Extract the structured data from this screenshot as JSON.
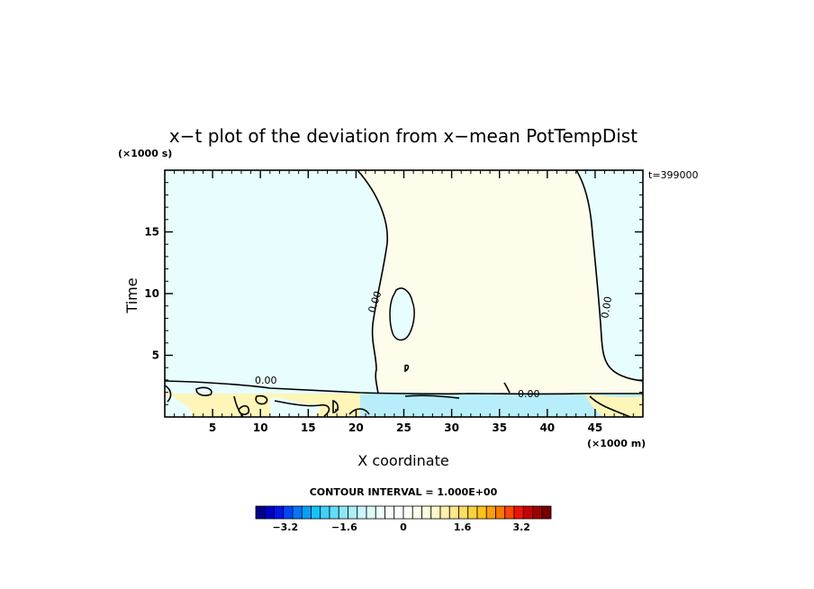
{
  "chart_data": {
    "type": "heatmap",
    "title": "x−t plot of the deviation from x−mean PotTempDist",
    "xlabel": "X coordinate",
    "ylabel": "Time",
    "x_units": "(×1000 m)",
    "y_units": "(×1000 s)",
    "timestamp": "t=399000",
    "xlim": [
      0,
      50
    ],
    "ylim": [
      0,
      20
    ],
    "x_ticks": [
      5,
      10,
      15,
      20,
      25,
      30,
      35,
      40,
      45
    ],
    "y_ticks": [
      5,
      10,
      15
    ],
    "contour_interval_text": "CONTOUR INTERVAL = 1.000E+00",
    "contour_labels": [
      "0.00",
      "0.00",
      "0.00",
      "0.00",
      "0.00"
    ],
    "regions": [
      {
        "name": "slightly negative (left)",
        "value": -0.3,
        "color": "#e8fefe"
      },
      {
        "name": "slightly positive (middle)",
        "value": 0.2,
        "color": "#fefcea"
      },
      {
        "name": "slightly negative (right)",
        "value": -0.3,
        "color": "#e8fefe"
      },
      {
        "name": "positive band near t=1 (left)",
        "value": 0.8,
        "color": "#fef5b8"
      },
      {
        "name": "negative band near t=1 (right)",
        "value": -0.9,
        "color": "#b8eefa"
      }
    ],
    "colorbar": {
      "min": -4.0,
      "max": 4.0,
      "tick_values": [
        -3.2,
        -1.6,
        0,
        1.6,
        3.2
      ],
      "tick_labels": [
        "−3.2",
        "−1.6",
        "0",
        "1.6",
        "3.2"
      ],
      "colors": [
        "#00008c",
        "#0000c8",
        "#0014f0",
        "#0046fa",
        "#0078fa",
        "#00a0fa",
        "#14c3fa",
        "#3cd2fa",
        "#64dcfa",
        "#8ce6fa",
        "#aaf0fa",
        "#c8f5fa",
        "#dcfafa",
        "#ebfdfd",
        "#f5fefe",
        "#fefefe",
        "#fffff5",
        "#fffdeb",
        "#fffadc",
        "#fff5c8",
        "#fff0aa",
        "#ffe68c",
        "#ffdc64",
        "#ffd23c",
        "#ffc314",
        "#ffa000",
        "#ff7800",
        "#ff4600",
        "#f01400",
        "#c80000",
        "#a00000",
        "#780000"
      ]
    },
    "grid": false
  }
}
